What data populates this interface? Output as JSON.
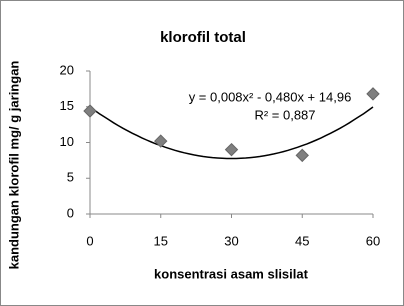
{
  "chart_data": {
    "type": "scatter",
    "title": "klorofil total",
    "x_label": "konsentrasi asam slisilat",
    "y_label": "kandungan klorofil mg/ g jaringan",
    "series": [
      {
        "color": "#7f7f7f",
        "x": [
          0,
          15,
          30,
          45,
          60
        ],
        "values": [
          14.4,
          10.2,
          9.0,
          8.2,
          16.8
        ]
      }
    ],
    "xlim": [
      0,
      60
    ],
    "xticks": [
      0,
      15,
      30,
      45,
      60
    ],
    "ylim": [
      0,
      20
    ],
    "yticks": [
      0,
      5,
      10,
      15,
      20
    ],
    "trendline": {
      "color": "#000000",
      "coefficients": [
        0.008,
        -0.48,
        14.96
      ],
      "equation": "y = 0,008x² - 0,480x + 14,96",
      "r_squared": "R² = 0,887"
    }
  }
}
